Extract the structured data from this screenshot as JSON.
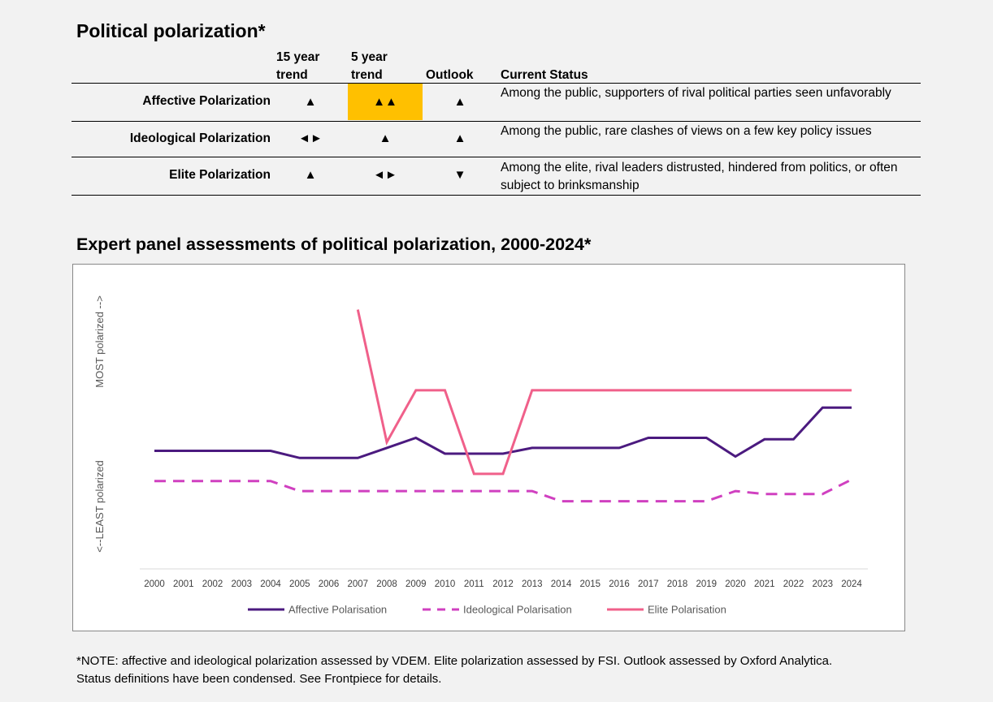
{
  "title": "Political polarization*",
  "table": {
    "headers": {
      "trend15_line1": "15 year",
      "trend15_line2": "trend",
      "trend5_line1": "5 year",
      "trend5_line2": "trend",
      "outlook": "Outlook",
      "status": "Current Status"
    },
    "rows": [
      {
        "label": "Affective Polarization",
        "trend15": "▲",
        "trend5": "▲▲",
        "outlook": "▲",
        "status": "Among the public, supporters of rival political parties seen unfavorably"
      },
      {
        "label": "Ideological Polarization",
        "trend15": "◄►",
        "trend5": "▲",
        "outlook": "▲",
        "status": "Among the public, rare clashes of views on a few key policy issues"
      },
      {
        "label": "Elite Polarization",
        "trend15": "▲",
        "trend5": "◄►",
        "outlook": "▼",
        "status": "Among the elite, rival leaders distrusted, hindered from politics, or often subject to brinksmanship"
      }
    ],
    "highlight_color": "#ffc000"
  },
  "chart_title": "Expert panel assessments of political polarization, 2000-2024*",
  "chart_data": {
    "type": "line",
    "x": [
      "2000",
      "2001",
      "2002",
      "2003",
      "2004",
      "2005",
      "2006",
      "2007",
      "2008",
      "2009",
      "2010",
      "2011",
      "2012",
      "2013",
      "2014",
      "2015",
      "2016",
      "2017",
      "2018",
      "2019",
      "2020",
      "2021",
      "2022",
      "2023",
      "2024"
    ],
    "ylim": [
      0,
      100
    ],
    "y_label_top": "MOST polarized -->",
    "y_label_bottom": "<--LEAST polarized",
    "grid": false,
    "legend_position": "bottom",
    "series": [
      {
        "name": "Affective Polarisation",
        "color": "#4b1a7f",
        "dash": "solid",
        "values": [
          41,
          41,
          41,
          41,
          41,
          38.5,
          38.5,
          38.5,
          42,
          45.5,
          40,
          40,
          40,
          42,
          42,
          42,
          42,
          45.5,
          45.5,
          45.5,
          39,
          45,
          45,
          56,
          56
        ]
      },
      {
        "name": "Ideological Polarisation",
        "color": "#d040c0",
        "dash": "dashed",
        "values": [
          30.5,
          30.5,
          30.5,
          30.5,
          30.5,
          27,
          27,
          27,
          27,
          27,
          27,
          27,
          27,
          27,
          23.5,
          23.5,
          23.5,
          23.5,
          23.5,
          23.5,
          27,
          26,
          26,
          26,
          31
        ]
      },
      {
        "name": "Elite Polarisation",
        "color": "#f0608a",
        "dash": "solid",
        "values": [
          null,
          null,
          null,
          null,
          null,
          null,
          null,
          90,
          44,
          62,
          62,
          33,
          33,
          62,
          62,
          62,
          62,
          62,
          62,
          62,
          62,
          62,
          62,
          62,
          62
        ]
      }
    ]
  },
  "note_line1": "*NOTE: affective and ideological polarization assessed by VDEM. Elite polarization assessed by FSI. Outlook assessed by Oxford Analytica.",
  "note_line2": "Status definitions have been condensed. See Frontpiece for details."
}
